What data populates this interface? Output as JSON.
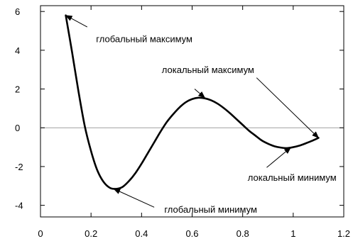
{
  "chart_data": {
    "type": "line",
    "title": "",
    "xlabel": "",
    "ylabel": "",
    "xlim": [
      0,
      1.2
    ],
    "ylim": [
      -4.6,
      6.3
    ],
    "x_ticks": [
      0,
      0.2,
      0.4,
      0.6,
      0.8,
      1,
      1.2
    ],
    "x_tick_labels": [
      "0",
      "0.2",
      "0.4",
      "0.6",
      "0.8",
      "1",
      "1.2"
    ],
    "y_ticks": [
      -4,
      -2,
      0,
      2,
      4,
      6
    ],
    "y_tick_labels": [
      "-4",
      "-2",
      "0",
      "2",
      "4",
      "6"
    ],
    "zero_line": true,
    "grid": false,
    "series": [
      {
        "name": "",
        "color": "#000000",
        "x": [
          0.1,
          0.125,
          0.15,
          0.175,
          0.2,
          0.225,
          0.25,
          0.275,
          0.3,
          0.325,
          0.35,
          0.375,
          0.4,
          0.425,
          0.45,
          0.475,
          0.5,
          0.525,
          0.55,
          0.575,
          0.6,
          0.625,
          0.65,
          0.675,
          0.7,
          0.725,
          0.75,
          0.775,
          0.8,
          0.825,
          0.85,
          0.875,
          0.9,
          0.925,
          0.95,
          0.975,
          1.0,
          1.025,
          1.05,
          1.075,
          1.1
        ],
        "y": [
          5.8,
          3.9,
          1.9,
          0.1,
          -1.2,
          -2.2,
          -2.8,
          -3.1,
          -3.15,
          -3.05,
          -2.75,
          -2.35,
          -1.85,
          -1.3,
          -0.75,
          -0.2,
          0.3,
          0.7,
          1.05,
          1.32,
          1.48,
          1.55,
          1.52,
          1.42,
          1.25,
          1.02,
          0.75,
          0.45,
          0.15,
          -0.15,
          -0.4,
          -0.65,
          -0.82,
          -0.95,
          -1.02,
          -1.05,
          -1.0,
          -0.92,
          -0.8,
          -0.67,
          -0.52
        ]
      }
    ],
    "annotations": [
      {
        "text": "глобальный максимум",
        "point": [
          0.1,
          5.8
        ],
        "label_at": [
          0.22,
          4.6
        ],
        "anchor": "start",
        "arrow_from": [
          0.185,
          5.2
        ]
      },
      {
        "text": "локальный максимум",
        "point": [
          0.65,
          1.55
        ],
        "label_at": [
          0.48,
          3.0
        ],
        "anchor": "start",
        "arrow_from": [
          0.61,
          2.0
        ]
      },
      {
        "text": "",
        "point": [
          1.1,
          -0.52
        ],
        "label_at": null,
        "anchor": "start",
        "arrow_from": [
          0.855,
          2.58
        ]
      },
      {
        "text": "локальный минимум",
        "point": [
          0.99,
          -1.02
        ],
        "label_at": [
          0.82,
          -2.55
        ],
        "anchor": "start",
        "arrow_from": [
          0.895,
          -2.05
        ]
      },
      {
        "text": "глобальный минимум",
        "point": [
          0.29,
          -3.15
        ],
        "label_at": [
          0.49,
          -4.2
        ],
        "anchor": "start",
        "arrow_from": [
          0.45,
          -4.1
        ]
      }
    ]
  }
}
